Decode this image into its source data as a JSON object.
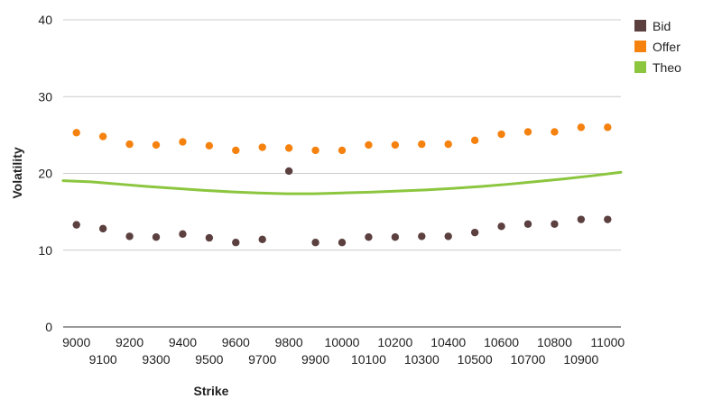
{
  "chart_data": {
    "type": "scatter",
    "xlabel": "Strike",
    "ylabel": "Volatility",
    "ylim": [
      0,
      40
    ],
    "yticks": [
      0,
      10,
      20,
      30,
      40
    ],
    "xticks_top": [
      "9000",
      "9200",
      "9400",
      "9600",
      "9800",
      "10000",
      "10200",
      "10400",
      "10600",
      "10800",
      "11000"
    ],
    "xticks_bottom": [
      "9100",
      "9300",
      "9500",
      "9700",
      "9900",
      "10100",
      "10300",
      "10500",
      "10700",
      "10900"
    ],
    "x": [
      9000,
      9100,
      9200,
      9300,
      9400,
      9500,
      9600,
      9700,
      9800,
      9900,
      10000,
      10100,
      10200,
      10300,
      10400,
      10500,
      10600,
      10700,
      10800,
      10900,
      11000
    ],
    "grid": "horizontal",
    "legend_position": "right",
    "series": [
      {
        "name": "Bid",
        "kind": "points",
        "color": "#5c4040",
        "values": [
          13.3,
          12.8,
          11.8,
          11.7,
          12.1,
          11.6,
          11.0,
          11.4,
          20.3,
          11.0,
          11.0,
          11.7,
          11.7,
          11.8,
          11.8,
          12.3,
          13.1,
          13.4,
          13.4,
          14.0,
          14.0
        ]
      },
      {
        "name": "Offer",
        "kind": "points",
        "color": "#f5820f",
        "values": [
          25.3,
          24.8,
          23.8,
          23.7,
          24.1,
          23.6,
          23.0,
          23.4,
          23.3,
          23.0,
          23.0,
          23.7,
          23.7,
          23.8,
          23.8,
          24.3,
          25.1,
          25.4,
          25.4,
          26.0,
          26.0
        ]
      },
      {
        "name": "Theo",
        "kind": "line",
        "color": "#8cc63f",
        "x_start": 8950,
        "values": [
          19.05,
          18.9,
          18.6,
          18.3,
          18.05,
          17.8,
          17.6,
          17.45,
          17.35,
          17.35,
          17.45,
          17.55,
          17.7,
          17.85,
          18.05,
          18.3,
          18.6,
          18.95,
          19.3,
          19.7,
          20.15
        ]
      }
    ]
  }
}
